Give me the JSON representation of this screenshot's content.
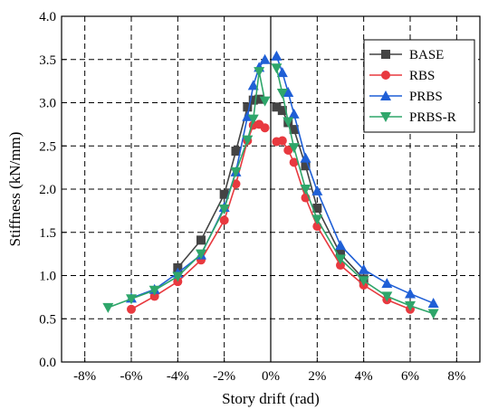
{
  "chart_data": {
    "type": "line",
    "xlabel": "Story drift (rad)",
    "ylabel": "Stiffness (kN/mm)",
    "xlim": [
      -0.09,
      0.09
    ],
    "ylim": [
      0.0,
      4.0
    ],
    "x_ticks": [
      -0.08,
      -0.06,
      -0.04,
      -0.02,
      0.0,
      0.02,
      0.04,
      0.06,
      0.08
    ],
    "x_tick_labels": [
      "-8%",
      "-6%",
      "-4%",
      "-2%",
      "0%",
      "2%",
      "4%",
      "6%",
      "8%"
    ],
    "y_ticks": [
      0.0,
      0.5,
      1.0,
      1.5,
      2.0,
      2.5,
      3.0,
      3.5,
      4.0
    ],
    "y_tick_labels": [
      "0.0",
      "0.5",
      "1.0",
      "1.5",
      "2.0",
      "2.5",
      "3.0",
      "3.5",
      "4.0"
    ],
    "grid": "dashed",
    "legend_position": "top-right",
    "series": [
      {
        "name": "BASE",
        "color": "#444444",
        "marker": "square",
        "branches": [
          {
            "x": [
              -0.04,
              -0.03,
              -0.02,
              -0.015,
              -0.01,
              -0.0075,
              -0.005
            ],
            "y": [
              1.09,
              1.41,
              1.94,
              2.44,
              2.95,
              3.03,
              3.04
            ]
          },
          {
            "x": [
              0.0025,
              0.005,
              0.0075,
              0.01,
              0.015,
              0.02,
              0.03,
              0.04
            ],
            "y": [
              2.95,
              2.91,
              2.77,
              2.69,
              2.27,
              1.78,
              1.25,
              0.96
            ]
          }
        ]
      },
      {
        "name": "RBS",
        "color": "#e8393f",
        "marker": "circle",
        "branches": [
          {
            "x": [
              -0.06,
              -0.05,
              -0.04,
              -0.03,
              -0.02,
              -0.015,
              -0.01,
              -0.0075,
              -0.005,
              -0.0025
            ],
            "y": [
              0.61,
              0.76,
              0.93,
              1.18,
              1.64,
              2.06,
              2.56,
              2.74,
              2.75,
              2.71
            ]
          },
          {
            "x": [
              0.0025,
              0.005,
              0.0075,
              0.01,
              0.015,
              0.02,
              0.03,
              0.04,
              0.05,
              0.06
            ],
            "y": [
              2.55,
              2.56,
              2.45,
              2.31,
              1.9,
              1.57,
              1.12,
              0.89,
              0.72,
              0.61
            ]
          }
        ]
      },
      {
        "name": "PRBS",
        "color": "#1f5fd6",
        "marker": "triangle-up",
        "branches": [
          {
            "x": [
              -0.06,
              -0.05,
              -0.04,
              -0.03,
              -0.02,
              -0.015,
              -0.01,
              -0.0075,
              -0.005,
              -0.0025
            ],
            "y": [
              0.74,
              0.84,
              1.03,
              1.24,
              1.79,
              2.2,
              2.84,
              3.2,
              3.41,
              3.5
            ]
          },
          {
            "x": [
              0.0025,
              0.005,
              0.0075,
              0.01,
              0.015,
              0.02,
              0.03,
              0.04,
              0.05,
              0.06,
              0.07
            ],
            "y": [
              3.54,
              3.35,
              3.12,
              2.87,
              2.36,
              1.98,
              1.35,
              1.07,
              0.91,
              0.79,
              0.68
            ]
          }
        ]
      },
      {
        "name": "PRBS-R",
        "color": "#2ea66a",
        "marker": "triangle-down",
        "branches": [
          {
            "x": [
              -0.07,
              -0.06,
              -0.05,
              -0.04,
              -0.03,
              -0.02,
              -0.015,
              -0.01,
              -0.0075,
              -0.005,
              -0.0025
            ],
            "y": [
              0.63,
              0.73,
              0.83,
              0.99,
              1.25,
              1.77,
              2.2,
              2.57,
              2.81,
              3.36,
              3.02
            ]
          },
          {
            "x": [
              0.0025,
              0.005,
              0.0075,
              0.01,
              0.015,
              0.02,
              0.03,
              0.04,
              0.05,
              0.06,
              0.07
            ],
            "y": [
              3.4,
              3.11,
              2.78,
              2.48,
              2.0,
              1.65,
              1.19,
              0.94,
              0.76,
              0.65,
              0.56
            ]
          }
        ]
      }
    ]
  }
}
